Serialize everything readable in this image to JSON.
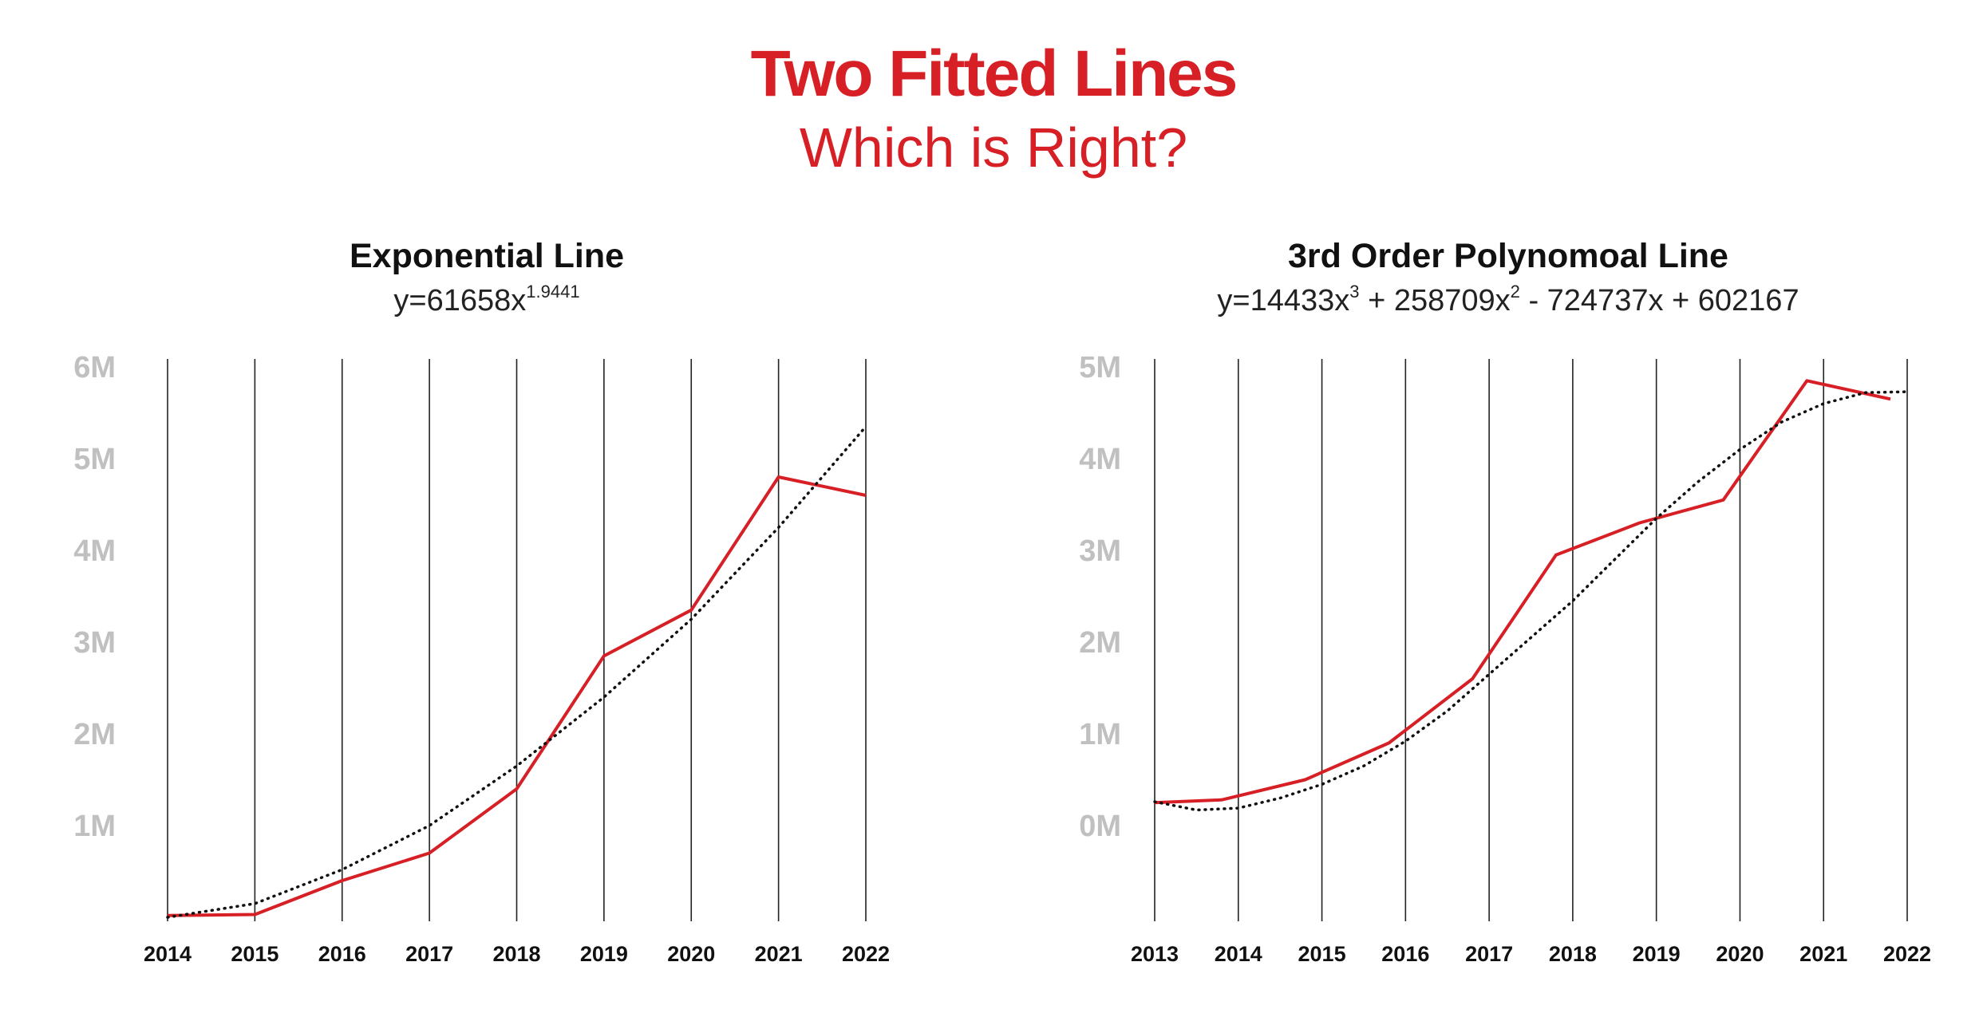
{
  "header": {
    "title": "Two Fitted Lines",
    "subtitle": "Which is Right?"
  },
  "colors": {
    "accent": "#d71f26",
    "tick_label": "#c0c0c0",
    "gridline": "#222222",
    "fit_line": "#111111"
  },
  "left_panel": {
    "title": "Exponential Line",
    "equation_prefix": "y=61658x",
    "equation_exp": "1.9441"
  },
  "right_panel": {
    "title": "3rd Order Polynomoal Line",
    "equation_parts": [
      "y=14433x",
      "3",
      " + 258709x",
      "2",
      " - 724737x + 602167"
    ]
  },
  "chart_data": [
    {
      "type": "line",
      "title": "Exponential Line",
      "x": [
        "2014",
        "2015",
        "2016",
        "2017",
        "2018",
        "2019",
        "2020",
        "2021",
        "2022"
      ],
      "y_ticks": [
        "1M",
        "2M",
        "3M",
        "4M",
        "5M",
        "6M"
      ],
      "ylim": [
        0,
        6000000
      ],
      "grid": "vertical",
      "series": [
        {
          "role": "actual",
          "values": [
            20000,
            30000,
            400000,
            700000,
            1400000,
            2850000,
            3350000,
            4800000,
            4600000
          ]
        },
        {
          "role": "fit",
          "style": "dotted",
          "values": [
            0,
            150000,
            520000,
            1000000,
            1650000,
            2400000,
            3250000,
            4250000,
            5350000
          ]
        }
      ]
    },
    {
      "type": "line",
      "title": "3rd Order Polynomoal Line",
      "x": [
        "2013",
        "2014",
        "2015",
        "2016",
        "2017",
        "2018",
        "2019",
        "2020",
        "2021",
        "2022"
      ],
      "y_ticks": [
        "0M",
        "1M",
        "2M",
        "3M",
        "4M",
        "5M"
      ],
      "ylim": [
        -1000000,
        5000000
      ],
      "grid": "vertical",
      "series": [
        {
          "role": "actual",
          "points": [
            [
              0,
              250000
            ],
            [
              0.8,
              280000
            ],
            [
              1.8,
              500000
            ],
            [
              2.8,
              900000
            ],
            [
              3.8,
              1600000
            ],
            [
              4.8,
              2950000
            ],
            [
              5.8,
              3300000
            ],
            [
              6.8,
              3550000
            ],
            [
              7.8,
              4850000
            ],
            [
              8.8,
              4650000
            ]
          ]
        },
        {
          "role": "fit",
          "style": "dotted",
          "points": [
            [
              0,
              260000
            ],
            [
              0.5,
              170000
            ],
            [
              1,
              190000
            ],
            [
              1.5,
              300000
            ],
            [
              2,
              450000
            ],
            [
              2.5,
              650000
            ],
            [
              3,
              920000
            ],
            [
              3.5,
              1250000
            ],
            [
              4,
              1650000
            ],
            [
              4.5,
              2050000
            ],
            [
              5,
              2450000
            ],
            [
              5.5,
              2900000
            ],
            [
              6,
              3350000
            ],
            [
              6.5,
              3750000
            ],
            [
              7,
              4100000
            ],
            [
              7.5,
              4400000
            ],
            [
              8,
              4600000
            ],
            [
              8.5,
              4720000
            ],
            [
              9,
              4730000
            ]
          ]
        }
      ]
    }
  ]
}
